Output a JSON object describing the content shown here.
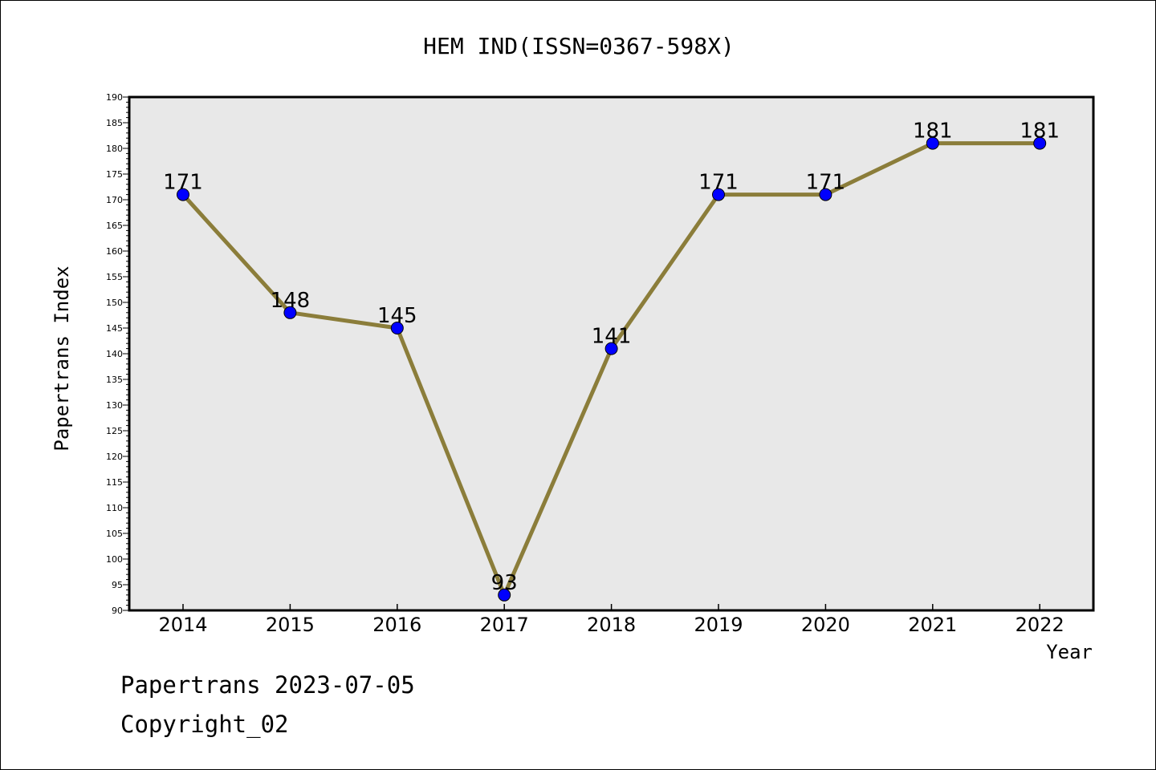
{
  "chart_data": {
    "type": "line",
    "title": "HEM IND(ISSN=0367-598X)",
    "xlabel": "Year",
    "ylabel": "Papertrans Index",
    "categories": [
      "2014",
      "2015",
      "2016",
      "2017",
      "2018",
      "2019",
      "2020",
      "2021",
      "2022"
    ],
    "series": [
      {
        "values": [
          171,
          148,
          145,
          93,
          141,
          171,
          171,
          181,
          181
        ]
      }
    ],
    "ylim": [
      90,
      190
    ],
    "ytick_step": 5,
    "grid": false,
    "colors": {
      "line": "#8b7d3a",
      "marker": "#0000ff",
      "plot_background": "#e8e8e8",
      "axes": "#000000"
    }
  },
  "footer": {
    "line1": "Papertrans 2023-07-05",
    "line2": "Copyright_02"
  }
}
